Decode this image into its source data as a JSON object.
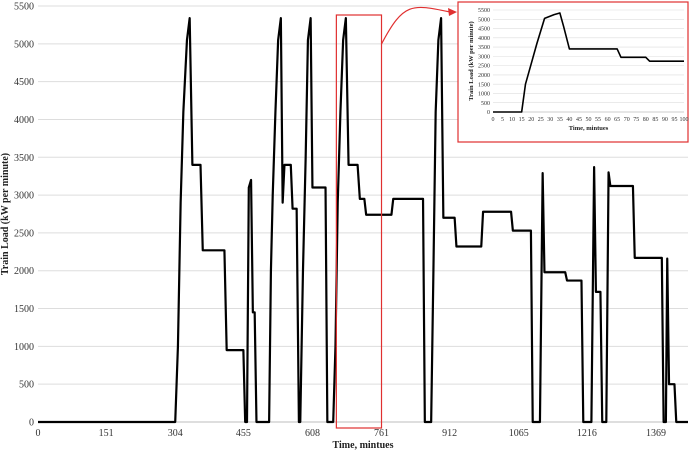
{
  "chart_data": [
    {
      "type": "line",
      "title": "",
      "xlabel": "Time, mintues",
      "ylabel": "Train Load (kW per minute)",
      "xlim": [
        0,
        1440
      ],
      "ylim": [
        0,
        5500
      ],
      "x_ticks": [
        "0",
        "151",
        "304",
        "455",
        "608",
        "761",
        "912",
        "1065",
        "1216",
        "1369"
      ],
      "x_tick_values": [
        0,
        151,
        304,
        455,
        608,
        761,
        912,
        1065,
        1216,
        1369
      ],
      "y_ticks": [
        "0",
        "500",
        "1000",
        "1500",
        "2000",
        "2500",
        "3000",
        "3500",
        "4000",
        "4500",
        "5000",
        "5500"
      ],
      "grid": "horizontal",
      "color": "#000000",
      "highlight_color": "#e03030",
      "highlight_x_range": [
        661,
        761
      ],
      "series": [
        {
          "points": [
            [
              0,
              0
            ],
            [
              304,
              0
            ],
            [
              310,
              1000
            ],
            [
              316,
              2900
            ],
            [
              322,
              4100
            ],
            [
              330,
              5050
            ],
            [
              336,
              5340
            ],
            [
              342,
              3400
            ],
            [
              360,
              3400
            ],
            [
              365,
              2270
            ],
            [
              413,
              2270
            ],
            [
              418,
              950
            ],
            [
              455,
              950
            ],
            [
              459,
              0
            ],
            [
              463,
              0
            ],
            [
              467,
              3100
            ],
            [
              472,
              3200
            ],
            [
              476,
              1450
            ],
            [
              480,
              1450
            ],
            [
              484,
              0
            ],
            [
              512,
              0
            ],
            [
              516,
              2000
            ],
            [
              520,
              3000
            ],
            [
              526,
              4100
            ],
            [
              532,
              5050
            ],
            [
              538,
              5340
            ],
            [
              542,
              2900
            ],
            [
              546,
              3400
            ],
            [
              560,
              3400
            ],
            [
              564,
              2820
            ],
            [
              573,
              2820
            ],
            [
              578,
              0
            ],
            [
              581,
              0
            ],
            [
              587,
              2000
            ],
            [
              593,
              3500
            ],
            [
              598,
              5050
            ],
            [
              604,
              5340
            ],
            [
              608,
              3100
            ],
            [
              637,
              3100
            ],
            [
              641,
              0
            ],
            [
              654,
              0
            ],
            [
              659,
              1000
            ],
            [
              664,
              2900
            ],
            [
              670,
              4100
            ],
            [
              676,
              5050
            ],
            [
              682,
              5340
            ],
            [
              688,
              3400
            ],
            [
              708,
              3400
            ],
            [
              713,
              2950
            ],
            [
              723,
              2950
            ],
            [
              727,
              2740
            ],
            [
              783,
              2740
            ],
            [
              787,
              2950
            ],
            [
              853,
              2950
            ],
            [
              857,
              0
            ],
            [
              871,
              0
            ],
            [
              876,
              2000
            ],
            [
              881,
              4100
            ],
            [
              887,
              5050
            ],
            [
              893,
              5340
            ],
            [
              898,
              2700
            ],
            [
              923,
              2700
            ],
            [
              927,
              2320
            ],
            [
              982,
              2320
            ],
            [
              986,
              2780
            ],
            [
              1048,
              2780
            ],
            [
              1052,
              2530
            ],
            [
              1092,
              2530
            ],
            [
              1096,
              0
            ],
            [
              1112,
              0
            ],
            [
              1118,
              3290
            ],
            [
              1122,
              1980
            ],
            [
              1168,
              1980
            ],
            [
              1172,
              1870
            ],
            [
              1204,
              1870
            ],
            [
              1208,
              0
            ],
            [
              1226,
              0
            ],
            [
              1232,
              3370
            ],
            [
              1236,
              1720
            ],
            [
              1246,
              1720
            ],
            [
              1250,
              0
            ],
            [
              1259,
              0
            ],
            [
              1264,
              3300
            ],
            [
              1268,
              3120
            ],
            [
              1318,
              3120
            ],
            [
              1322,
              2170
            ],
            [
              1382,
              2170
            ],
            [
              1386,
              0
            ],
            [
              1391,
              0
            ],
            [
              1394,
              2160
            ],
            [
              1398,
              500
            ],
            [
              1410,
              500
            ],
            [
              1414,
              0
            ],
            [
              1440,
              0
            ]
          ]
        }
      ]
    },
    {
      "type": "line",
      "title": "",
      "xlabel": "Time, mintues",
      "ylabel": "Train Load (kW per minute)",
      "xlim": [
        0,
        100
      ],
      "ylim": [
        0,
        5500
      ],
      "x_ticks": [
        "0",
        "5",
        "10",
        "15",
        "20",
        "25",
        "30",
        "35",
        "40",
        "45",
        "50",
        "55",
        "60",
        "65",
        "70",
        "75",
        "80",
        "85",
        "90",
        "95",
        "100"
      ],
      "y_ticks": [
        "0",
        "500",
        "1000",
        "1500",
        "2000",
        "2500",
        "3000",
        "3500",
        "4000",
        "4500",
        "5000",
        "5500"
      ],
      "grid": "horizontal",
      "color": "#000000",
      "series": [
        {
          "points": [
            [
              0,
              0
            ],
            [
              14,
              0
            ],
            [
              15,
              0
            ],
            [
              17,
              1500
            ],
            [
              20,
              2600
            ],
            [
              23,
              3700
            ],
            [
              27,
              5050
            ],
            [
              32,
              5250
            ],
            [
              35,
              5340
            ],
            [
              37,
              4600
            ],
            [
              40,
              3400
            ],
            [
              65,
              3400
            ],
            [
              67,
              2950
            ],
            [
              80,
              2950
            ],
            [
              82,
              2740
            ],
            [
              100,
              2740
            ]
          ]
        }
      ]
    }
  ]
}
